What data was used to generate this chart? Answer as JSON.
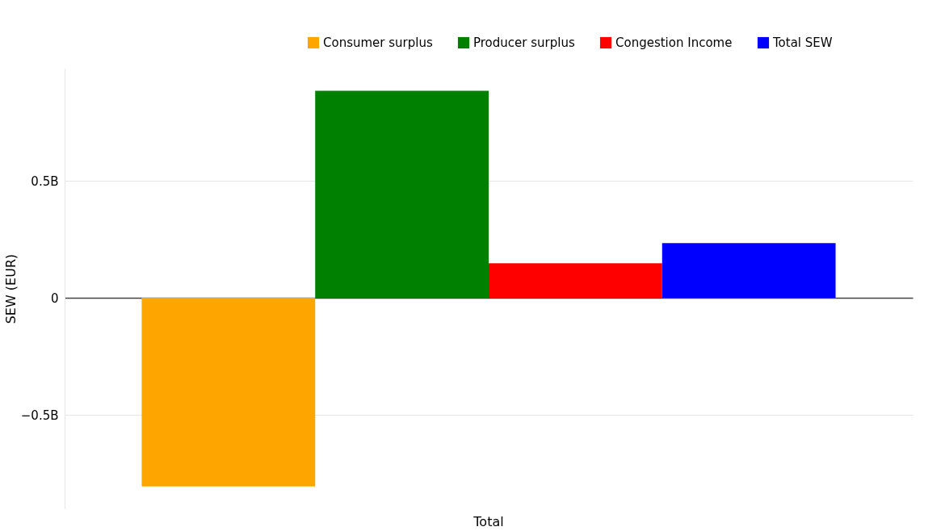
{
  "chart_data": {
    "type": "bar",
    "ylabel": "SEW (EUR)",
    "categories": [
      "Total"
    ],
    "series": [
      {
        "name": "Consumer surplus",
        "color": "#ffa500",
        "values": [
          -806000000
        ]
      },
      {
        "name": "Producer surplus",
        "color": "#008000",
        "values": [
          885000000
        ]
      },
      {
        "name": "Congestion Income",
        "color": "#ff0000",
        "values": [
          148000000
        ]
      },
      {
        "name": "Total SEW",
        "color": "#0000ff",
        "values": [
          234000000
        ]
      }
    ],
    "ylim": [
      -900000000,
      980000000
    ],
    "yticks": [
      {
        "value": -500000000,
        "label": "−0.5B"
      },
      0,
      {
        "value": 500000000,
        "label": "0.5B"
      }
    ],
    "grid": "y",
    "legend": "top right"
  }
}
